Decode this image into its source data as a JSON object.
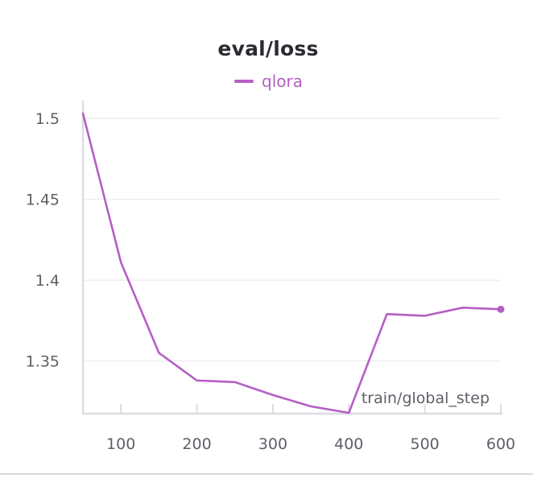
{
  "chart_data": {
    "type": "line",
    "title": "eval/loss",
    "xlabel": "train/global_step",
    "ylabel": "",
    "x_ticks": [
      "100",
      "200",
      "300",
      "400",
      "500",
      "600"
    ],
    "y_ticks": [
      "1.5",
      "1.45",
      "1.4",
      "1.35"
    ],
    "xlim": [
      50,
      600
    ],
    "ylim": [
      1.318,
      1.505
    ],
    "grid": true,
    "legend_position": "top-center",
    "series": [
      {
        "name": "qlora",
        "color": "#b55fc4",
        "x": [
          50,
          100,
          150,
          200,
          250,
          300,
          350,
          400,
          450,
          500,
          550,
          600
        ],
        "y": [
          1.503,
          1.411,
          1.355,
          1.338,
          1.337,
          1.329,
          1.322,
          1.318,
          1.379,
          1.378,
          1.383,
          1.382
        ]
      }
    ]
  }
}
